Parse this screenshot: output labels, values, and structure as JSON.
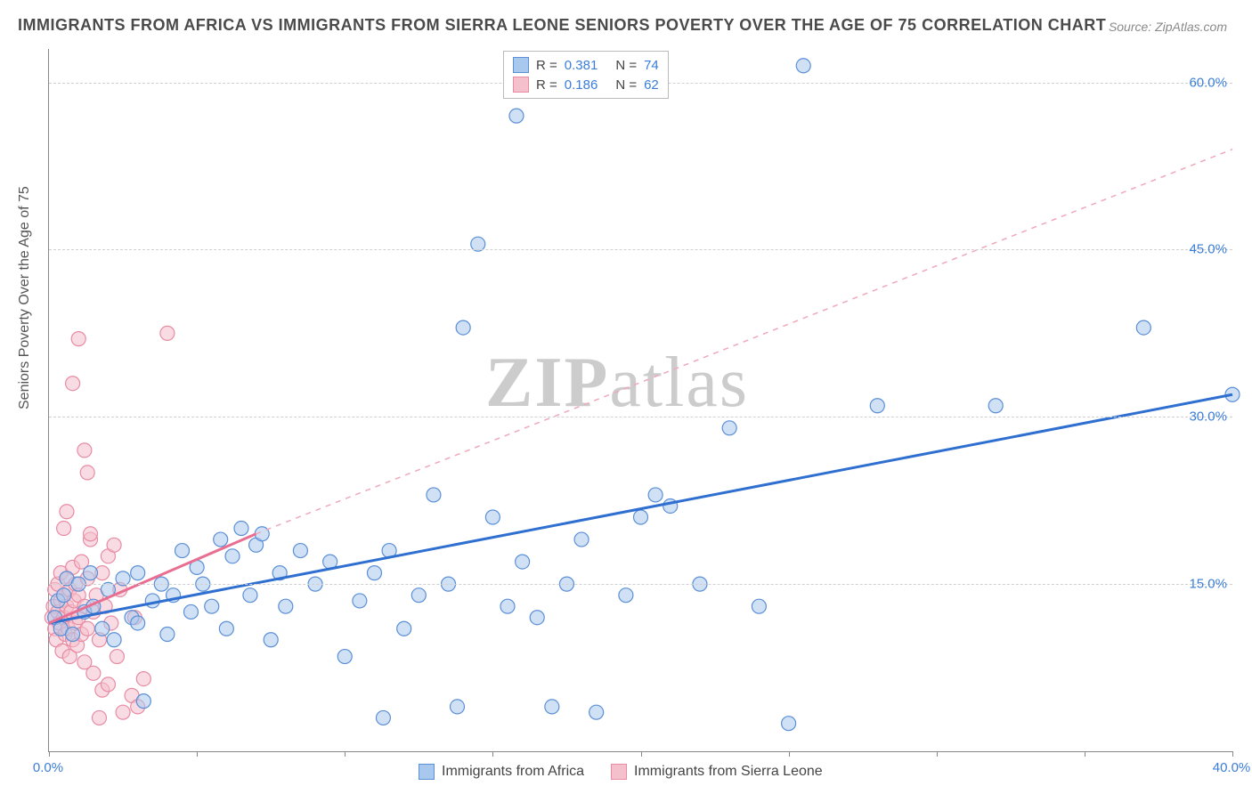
{
  "title": "IMMIGRANTS FROM AFRICA VS IMMIGRANTS FROM SIERRA LEONE SENIORS POVERTY OVER THE AGE OF 75 CORRELATION CHART",
  "source": "Source: ZipAtlas.com",
  "watermark": "ZIPatlas",
  "ylabel": "Seniors Poverty Over the Age of 75",
  "chart": {
    "type": "scatter",
    "background_color": "#ffffff",
    "grid_color": "#d0d0d0",
    "axis_color": "#888888",
    "xlim": [
      0,
      40
    ],
    "ylim": [
      0,
      63
    ],
    "y_ticks": [
      15,
      30,
      45,
      60
    ],
    "y_tick_labels": [
      "15.0%",
      "30.0%",
      "45.0%",
      "60.0%"
    ],
    "x_ticks": [
      0,
      5,
      10,
      15,
      20,
      25,
      30,
      35,
      40
    ],
    "x_tick_labels_shown": {
      "0": "0.0%",
      "40": "40.0%"
    },
    "marker_radius": 8,
    "marker_opacity": 0.55,
    "series": [
      {
        "name": "Immigrants from Africa",
        "color_fill": "#a9c8ee",
        "color_stroke": "#5b8fd6",
        "r": 0.381,
        "n": 74,
        "trend": {
          "x1": 0,
          "y1": 11.5,
          "x2": 40,
          "y2": 32,
          "style": "solid",
          "width": 3,
          "color": "#2e6fd0"
        },
        "trend_extension": null,
        "points": [
          [
            0.2,
            12
          ],
          [
            0.3,
            13.5
          ],
          [
            0.4,
            11
          ],
          [
            0.5,
            14
          ],
          [
            0.6,
            15.5
          ],
          [
            0.8,
            10.5
          ],
          [
            1,
            15
          ],
          [
            1.2,
            12.5
          ],
          [
            1.4,
            16
          ],
          [
            1.5,
            13
          ],
          [
            1.8,
            11
          ],
          [
            2,
            14.5
          ],
          [
            2.2,
            10
          ],
          [
            2.5,
            15.5
          ],
          [
            2.8,
            12
          ],
          [
            3,
            16
          ],
          [
            3,
            11.5
          ],
          [
            3.2,
            4.5
          ],
          [
            3.5,
            13.5
          ],
          [
            3.8,
            15
          ],
          [
            4,
            10.5
          ],
          [
            4.2,
            14
          ],
          [
            4.5,
            18
          ],
          [
            4.8,
            12.5
          ],
          [
            5,
            16.5
          ],
          [
            5.2,
            15
          ],
          [
            5.5,
            13
          ],
          [
            5.8,
            19
          ],
          [
            6,
            11
          ],
          [
            6.2,
            17.5
          ],
          [
            6.5,
            20
          ],
          [
            6.8,
            14
          ],
          [
            7,
            18.5
          ],
          [
            7.2,
            19.5
          ],
          [
            7.5,
            10
          ],
          [
            7.8,
            16
          ],
          [
            8,
            13
          ],
          [
            8.5,
            18
          ],
          [
            9,
            15
          ],
          [
            9.5,
            17
          ],
          [
            10,
            8.5
          ],
          [
            10.5,
            13.5
          ],
          [
            11,
            16
          ],
          [
            11.3,
            3
          ],
          [
            11.5,
            18
          ],
          [
            12,
            11
          ],
          [
            12.5,
            14
          ],
          [
            13,
            23
          ],
          [
            13.5,
            15
          ],
          [
            13.8,
            4
          ],
          [
            14,
            38
          ],
          [
            14.5,
            45.5
          ],
          [
            15,
            21
          ],
          [
            15.5,
            13
          ],
          [
            15.8,
            57
          ],
          [
            16,
            17
          ],
          [
            16.5,
            12
          ],
          [
            17,
            4
          ],
          [
            17.5,
            15
          ],
          [
            18,
            19
          ],
          [
            18.5,
            3.5
          ],
          [
            19.5,
            14
          ],
          [
            20,
            21
          ],
          [
            20.5,
            23
          ],
          [
            21,
            22
          ],
          [
            22,
            15
          ],
          [
            23,
            29
          ],
          [
            24,
            13
          ],
          [
            25,
            2.5
          ],
          [
            25.5,
            61.5
          ],
          [
            28,
            31
          ],
          [
            32,
            31
          ],
          [
            37,
            38
          ],
          [
            40,
            32
          ]
        ]
      },
      {
        "name": "Immigrants from Sierra Leone",
        "color_fill": "#f4c0cc",
        "color_stroke": "#e88ba3",
        "r": 0.186,
        "n": 62,
        "trend": {
          "x1": 0,
          "y1": 11.5,
          "x2": 7,
          "y2": 19.5,
          "style": "solid",
          "width": 3,
          "color": "#e86f92"
        },
        "trend_extension": {
          "x1": 7,
          "y1": 19.5,
          "x2": 40,
          "y2": 54,
          "style": "dashed",
          "width": 1.5,
          "color": "#f0a8bb"
        },
        "points": [
          [
            0.1,
            12
          ],
          [
            0.15,
            13
          ],
          [
            0.2,
            11
          ],
          [
            0.2,
            14.5
          ],
          [
            0.25,
            10
          ],
          [
            0.3,
            12.5
          ],
          [
            0.3,
            15
          ],
          [
            0.35,
            11.5
          ],
          [
            0.4,
            13.5
          ],
          [
            0.4,
            16
          ],
          [
            0.45,
            9
          ],
          [
            0.5,
            14
          ],
          [
            0.5,
            12
          ],
          [
            0.55,
            10.5
          ],
          [
            0.6,
            15.5
          ],
          [
            0.6,
            13
          ],
          [
            0.65,
            11
          ],
          [
            0.7,
            14.5
          ],
          [
            0.7,
            8.5
          ],
          [
            0.75,
            12.5
          ],
          [
            0.8,
            16.5
          ],
          [
            0.8,
            10
          ],
          [
            0.85,
            13.5
          ],
          [
            0.9,
            11.5
          ],
          [
            0.9,
            15
          ],
          [
            0.95,
            9.5
          ],
          [
            1,
            14
          ],
          [
            1,
            12
          ],
          [
            1.1,
            17
          ],
          [
            1.1,
            10.5
          ],
          [
            1.2,
            13
          ],
          [
            1.2,
            8
          ],
          [
            1.3,
            15.5
          ],
          [
            1.3,
            11
          ],
          [
            1.4,
            19
          ],
          [
            1.5,
            12.5
          ],
          [
            1.5,
            7
          ],
          [
            1.6,
            14
          ],
          [
            1.7,
            10
          ],
          [
            1.8,
            16
          ],
          [
            1.8,
            5.5
          ],
          [
            1.9,
            13
          ],
          [
            2,
            17.5
          ],
          [
            2,
            6
          ],
          [
            2.1,
            11.5
          ],
          [
            2.2,
            18.5
          ],
          [
            2.3,
            8.5
          ],
          [
            2.4,
            14.5
          ],
          [
            1.2,
            27
          ],
          [
            1.3,
            25
          ],
          [
            0.8,
            33
          ],
          [
            2.8,
            5
          ],
          [
            3,
            4
          ],
          [
            3.2,
            6.5
          ],
          [
            2.5,
            3.5
          ],
          [
            1.7,
            3
          ],
          [
            4,
            37.5
          ],
          [
            1,
            37
          ],
          [
            0.5,
            20
          ],
          [
            0.6,
            21.5
          ],
          [
            1.4,
            19.5
          ],
          [
            2.9,
            12
          ]
        ]
      }
    ]
  },
  "legend_top": {
    "r_label": "R =",
    "n_label": "N ="
  },
  "legend_bottom": {
    "items": [
      "Immigrants from Africa",
      "Immigrants from Sierra Leone"
    ]
  },
  "title_fontsize": 18,
  "label_fontsize": 16,
  "tick_fontsize": 15
}
